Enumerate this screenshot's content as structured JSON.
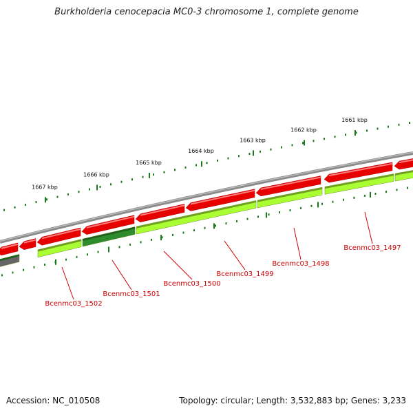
{
  "title": "Burkholderia cenocepacia MC0-3 chromosome 1, complete genome",
  "footer": {
    "accession": "Accession: NC_010508",
    "summary": "Topology: circular; Length: 3,532,883 bp; Genes: 3,233"
  },
  "colors": {
    "backbone": "#8a8a8a",
    "forward_cds": "#e60000",
    "reverse_cds": "#aaff33",
    "reverse_cds_dark": "#2e8b2e",
    "ticks": "#1a7a1a",
    "label": "#cc0000",
    "gray_feature": "#666666"
  },
  "scale_ticks": [
    {
      "label": "1667 kbp"
    },
    {
      "label": "1666 kbp"
    },
    {
      "label": "1665 kbp"
    },
    {
      "label": "1664 kbp"
    },
    {
      "label": "1663 kbp"
    },
    {
      "label": "1662 kbp"
    },
    {
      "label": "1661 kbp"
    }
  ],
  "gene_labels": [
    {
      "name": "Bcenmc03_1502"
    },
    {
      "name": "Bcenmc03_1501"
    },
    {
      "name": "Bcenmc03_1500"
    },
    {
      "name": "Bcenmc03_1499"
    },
    {
      "name": "Bcenmc03_1498"
    },
    {
      "name": "Bcenmc03_1497"
    }
  ]
}
